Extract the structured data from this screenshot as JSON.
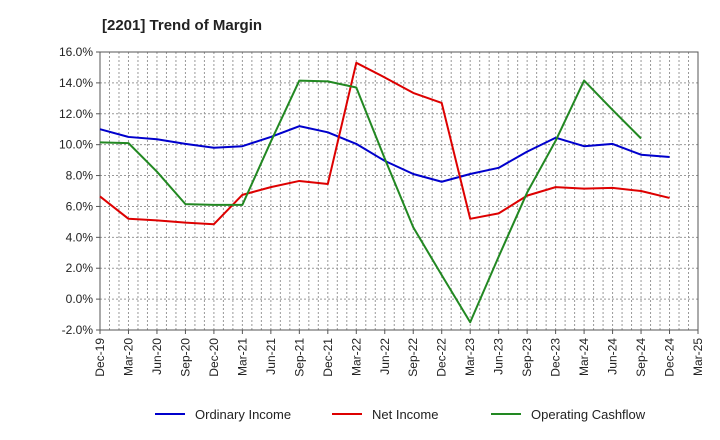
{
  "chart_data": {
    "type": "line",
    "title": "[2201]  Trend of Margin",
    "xlabel": "",
    "ylabel": "",
    "ylim": [
      -2,
      16
    ],
    "yticks": [
      "-2.0%",
      "0.0%",
      "2.0%",
      "4.0%",
      "6.0%",
      "8.0%",
      "10.0%",
      "12.0%",
      "14.0%",
      "16.0%"
    ],
    "categories": [
      "Dec-19",
      "Mar-20",
      "Jun-20",
      "Sep-20",
      "Dec-20",
      "Mar-21",
      "Jun-21",
      "Sep-21",
      "Dec-21",
      "Mar-22",
      "Jun-22",
      "Sep-22",
      "Dec-22",
      "Mar-23",
      "Jun-23",
      "Sep-23",
      "Dec-23",
      "Mar-24",
      "Jun-24",
      "Sep-24",
      "Dec-24",
      "Mar-25"
    ],
    "grid": true,
    "legend_position": "bottom",
    "series": [
      {
        "name": "Ordinary Income",
        "color": "#0000cc",
        "values": [
          11.0,
          10.5,
          10.35,
          10.05,
          9.8,
          9.9,
          10.5,
          11.2,
          10.8,
          10.05,
          8.95,
          8.1,
          7.6,
          8.1,
          8.5,
          9.55,
          10.45,
          9.9,
          10.05,
          9.35,
          9.2,
          null
        ]
      },
      {
        "name": "Net Income",
        "color": "#dd0000",
        "values": [
          6.65,
          5.2,
          5.1,
          4.95,
          4.85,
          6.75,
          7.25,
          7.65,
          7.45,
          15.3,
          14.35,
          13.35,
          12.7,
          5.2,
          5.55,
          6.7,
          7.25,
          7.15,
          7.2,
          7.0,
          6.55,
          null
        ]
      },
      {
        "name": "Operating Cashflow",
        "color": "#228822",
        "values": [
          10.15,
          10.1,
          8.25,
          6.15,
          6.1,
          6.1,
          10.2,
          14.15,
          14.1,
          13.7,
          9.1,
          4.65,
          1.55,
          -1.5,
          2.75,
          6.9,
          10.25,
          14.15,
          12.25,
          10.4,
          null,
          null
        ]
      }
    ]
  }
}
